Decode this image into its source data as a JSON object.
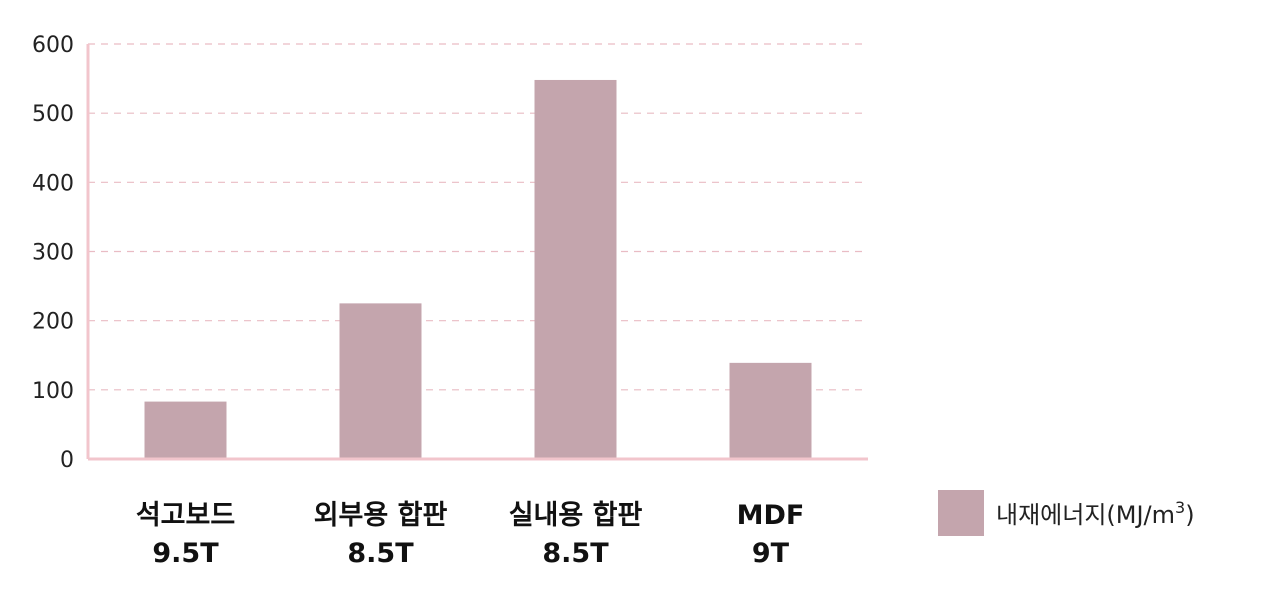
{
  "chart_data": {
    "type": "bar",
    "categories": [
      [
        "석고보드",
        "9.5T"
      ],
      [
        "외부용 합판",
        "8.5T"
      ],
      [
        "실내용 합판",
        "8.5T"
      ],
      [
        "MDF",
        "9T"
      ]
    ],
    "series": [
      {
        "name": "내재에너지(MJ/m3)",
        "values": [
          83,
          225,
          548,
          139
        ]
      }
    ],
    "legend": {
      "label": "내재에너지(MJ/m",
      "superscript": "3",
      "suffix": ")",
      "position": "right"
    },
    "ylim": [
      0,
      600
    ],
    "yticks": [
      0,
      100,
      200,
      300,
      400,
      500,
      600
    ],
    "grid": true,
    "colors": {
      "bar": "#c4a5ad",
      "axis": "#f2c5cc",
      "grid": "#e9bcc4"
    }
  }
}
